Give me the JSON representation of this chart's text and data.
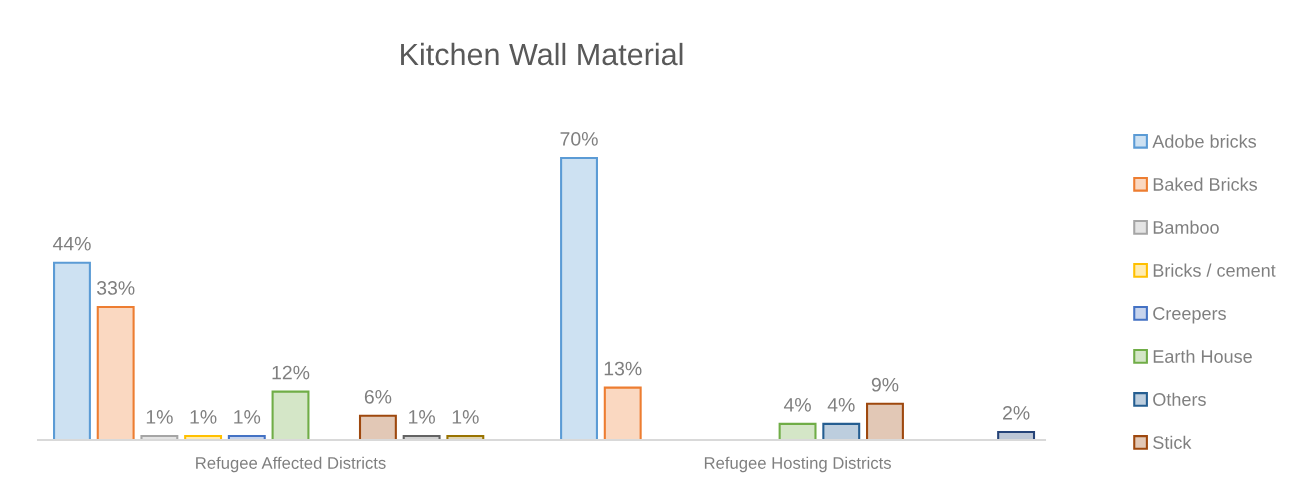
{
  "chart_data": {
    "type": "bar",
    "title": "Kitchen Wall Material",
    "categories": [
      "Refugee Affected Districts",
      "Refugee Hosting Districts"
    ],
    "series": [
      {
        "name": "Adobe bricks",
        "color": "#5b9bd5",
        "values": [
          44,
          70
        ],
        "value_labels": [
          "44%",
          "70%"
        ]
      },
      {
        "name": "Baked Bricks",
        "color": "#ed7d31",
        "values": [
          33,
          13
        ],
        "value_labels": [
          "33%",
          "13%"
        ]
      },
      {
        "name": "Bamboo",
        "color": "#a5a5a5",
        "values": [
          1,
          null
        ],
        "value_labels": [
          "1%",
          null
        ]
      },
      {
        "name": "Bricks / cement",
        "color": "#ffc000",
        "values": [
          1,
          null
        ],
        "value_labels": [
          "1%",
          null
        ]
      },
      {
        "name": "Creepers",
        "color": "#4472c4",
        "values": [
          1,
          null
        ],
        "value_labels": [
          "1%",
          null
        ]
      },
      {
        "name": "Earth House",
        "color": "#70ad47",
        "values": [
          12,
          4
        ],
        "value_labels": [
          "12%",
          "4%"
        ]
      },
      {
        "name": "Others",
        "color": "#255e91",
        "values": [
          null,
          4
        ],
        "value_labels": [
          null,
          "4%"
        ]
      },
      {
        "name": "Stick",
        "color": "#9e480e",
        "values": [
          6,
          9
        ],
        "value_labels": [
          "6%",
          "9%"
        ]
      },
      {
        "color": "#636363",
        "values": [
          1,
          null
        ],
        "value_labels": [
          "1%",
          null
        ]
      },
      {
        "color": "#997300",
        "values": [
          1,
          null
        ],
        "value_labels": [
          "1%",
          null
        ]
      },
      {
        "color": "#264478",
        "values": [
          null,
          2
        ],
        "value_labels": [
          null,
          "2%"
        ]
      }
    ],
    "legend": "right",
    "grid": false
  }
}
